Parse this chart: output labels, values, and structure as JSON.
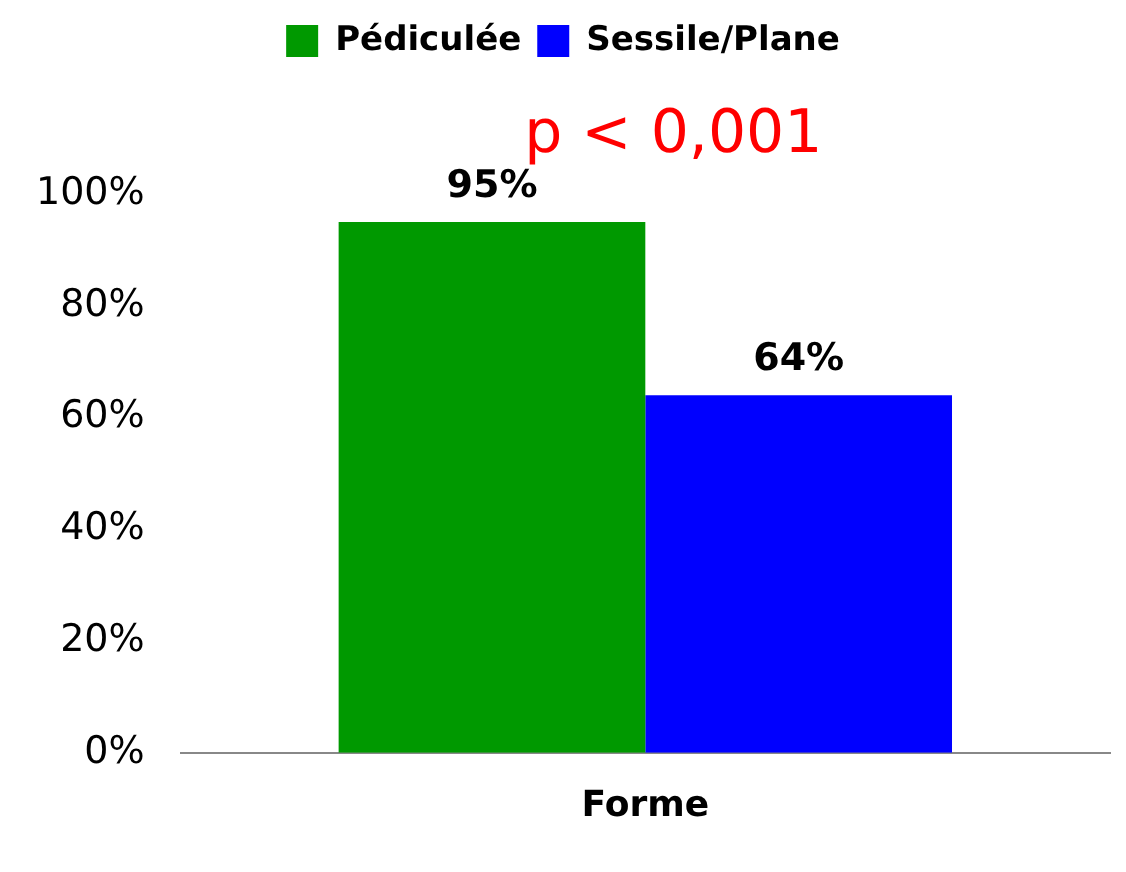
{
  "chart_data": {
    "type": "bar",
    "categories": [
      "Forme"
    ],
    "series": [
      {
        "name": "Pédiculée",
        "color": "#009900",
        "values": [
          95
        ],
        "value_labels": [
          "95%"
        ]
      },
      {
        "name": "Sessile/Plane",
        "color": "#0000ff",
        "values": [
          64
        ],
        "value_labels": [
          "64%"
        ]
      }
    ],
    "ylim": [
      0,
      100
    ],
    "yticks": [
      {
        "value": 0,
        "label": "0%"
      },
      {
        "value": 20,
        "label": "20%"
      },
      {
        "value": 40,
        "label": "40%"
      },
      {
        "value": 60,
        "label": "60%"
      },
      {
        "value": 80,
        "label": "80%"
      },
      {
        "value": 100,
        "label": "100%"
      }
    ],
    "grid": false,
    "legend": "top",
    "annotations": [
      "p < 0,001"
    ]
  }
}
